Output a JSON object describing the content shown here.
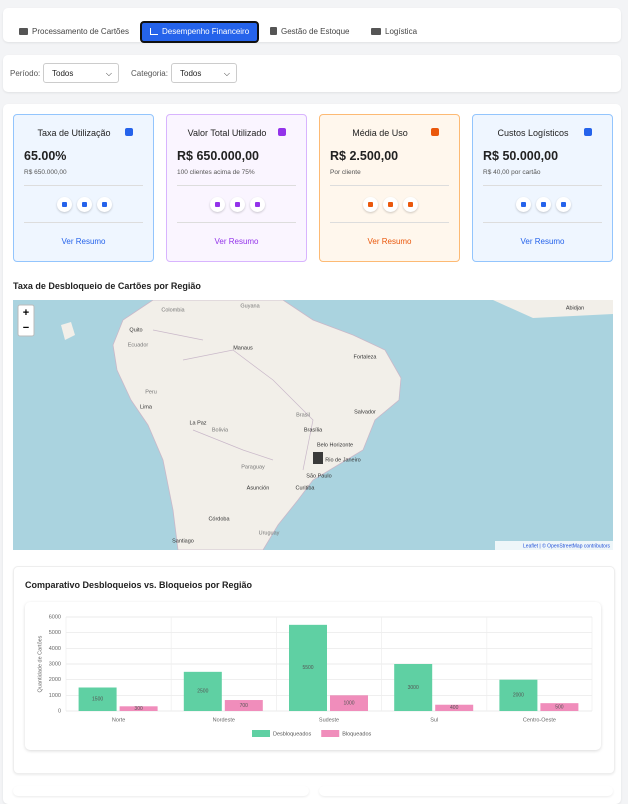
{
  "tabs": [
    "Processamento de Cartões",
    "Desempenho Financeiro",
    "Gestão de Estoque",
    "Logística"
  ],
  "filters": {
    "period_label": "Período:",
    "period_value": "Todos",
    "category_label": "Categoria:",
    "category_value": "Todos"
  },
  "cards": [
    {
      "title": "Taxa de Utilização",
      "value": "65.00%",
      "sub": "R$ 650.000,00",
      "link": "Ver Resumo"
    },
    {
      "title": "Valor Total Utilizado",
      "value": "R$ 650.000,00",
      "sub": "100 clientes acima de 75%",
      "link": "Ver Resumo"
    },
    {
      "title": "Média de Uso",
      "value": "R$ 2.500,00",
      "sub": "Por cliente",
      "link": "Ver Resumo"
    },
    {
      "title": "Custos Logísticos",
      "value": "R$ 50.000,00",
      "sub": "R$ 40,00 por cartão",
      "link": "Ver Resumo"
    }
  ],
  "map": {
    "title": "Taxa de Desbloqueio de Cartões por Região",
    "zoom_in": "+",
    "zoom_out": "−",
    "attribution": "Leaflet | © OpenStreetMap contributors",
    "labels": [
      "Colombia",
      "Guyana",
      "Quito",
      "Ecuador",
      "Manaus",
      "Fortaleza",
      "Peru",
      "Lima",
      "Salvador",
      "Brasil",
      "Brasília",
      "La Paz",
      "Bolivia",
      "Belo Horizonte",
      "Rio de Janeiro",
      "São Paulo",
      "Paraguay",
      "Asunción",
      "Curitiba",
      "Córdoba",
      "Santiago",
      "Uruguay",
      "Abidjan"
    ]
  },
  "chart_data": {
    "type": "bar",
    "title": "Comparativo Desbloqueios vs. Bloqueios por Região",
    "y_label": "Quantidade de Cartões",
    "categories": [
      "Norte",
      "Nordeste",
      "Sudeste",
      "Sul",
      "Centro-Oeste"
    ],
    "series": [
      {
        "name": "Desbloqueados",
        "color": "#5fd0a3",
        "values": [
          1500,
          2500,
          5500,
          3000,
          2000
        ]
      },
      {
        "name": "Bloqueados",
        "color": "#f08dbb",
        "values": [
          300,
          700,
          1000,
          400,
          500
        ]
      }
    ],
    "ylim": [
      0,
      6000
    ],
    "yticks": [
      0,
      1000,
      2000,
      3000,
      4000,
      5000,
      6000
    ],
    "grid": true,
    "legend": "bottom"
  }
}
